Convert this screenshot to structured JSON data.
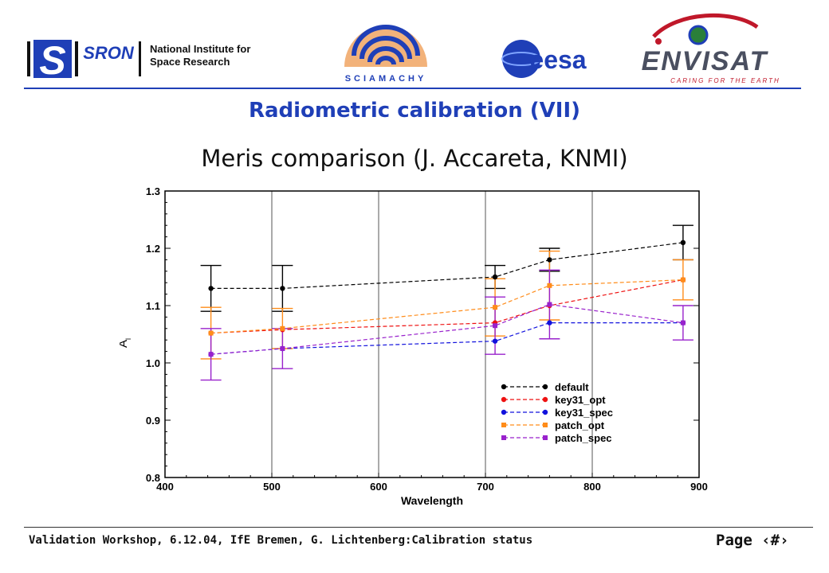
{
  "header": {
    "sron_logo_text": "SRON",
    "institute_line1": "National Institute for",
    "institute_line2": "Space Research",
    "sciamachy_logo_text": "SCIAMACHY",
    "esa_logo_text": "eesa",
    "envisat_logo_text": "ENVISAT",
    "envisat_tagline": "CARING FOR THE EARTH",
    "rule_color": "#1f3fb7"
  },
  "slide": {
    "title": "Radiometric calibration (VII)",
    "subtitle": "Meris comparison (J. Accareta, KNMI)"
  },
  "footer": {
    "text": "Validation Workshop, 6.12.04, IfE Bremen, G. Lichtenberg:Calibration status",
    "page_label": "Page ‹#›"
  },
  "chart_data": {
    "type": "line",
    "xlabel": "Wavelength",
    "ylabel": "A",
    "ylabel_subscript": "l",
    "xlim": [
      400,
      900
    ],
    "ylim": [
      0.8,
      1.3
    ],
    "xticks": [
      400,
      500,
      600,
      700,
      800,
      900
    ],
    "yticks": [
      0.8,
      0.9,
      1.0,
      1.1,
      1.2,
      1.3
    ],
    "xtick_labels": [
      "400",
      "500",
      "600",
      "700",
      "800",
      "900"
    ],
    "ytick_labels": [
      "0.8",
      "0.9",
      "1.0",
      "1.1",
      "1.2",
      "1.3"
    ],
    "grid": "vertical",
    "legend_position": "bottom-right",
    "x": [
      443,
      510,
      709,
      760,
      885
    ],
    "series": [
      {
        "name": "default",
        "color": "#000000",
        "marker": "circle",
        "values": [
          1.13,
          1.13,
          1.15,
          1.18,
          1.21
        ],
        "error": [
          0.04,
          0.04,
          0.02,
          0.02,
          0.03
        ]
      },
      {
        "name": "key31_opt",
        "color": "#ee1111",
        "marker": "circle",
        "values": [
          1.052,
          1.058,
          1.07,
          1.1,
          1.145
        ],
        "error": null
      },
      {
        "name": "key31_spec",
        "color": "#1111dd",
        "marker": "circle",
        "values": [
          1.015,
          1.025,
          1.038,
          1.07,
          1.07
        ],
        "error": null
      },
      {
        "name": "patch_opt",
        "color": "#ff8c1a",
        "marker": "square",
        "values": [
          1.052,
          1.06,
          1.097,
          1.135,
          1.145
        ],
        "error": [
          0.045,
          0.035,
          0.05,
          0.06,
          0.035
        ]
      },
      {
        "name": "patch_spec",
        "color": "#9922cc",
        "marker": "square",
        "values": [
          1.015,
          1.025,
          1.065,
          1.102,
          1.07
        ],
        "error": [
          0.045,
          0.035,
          0.05,
          0.06,
          0.03
        ]
      }
    ]
  }
}
